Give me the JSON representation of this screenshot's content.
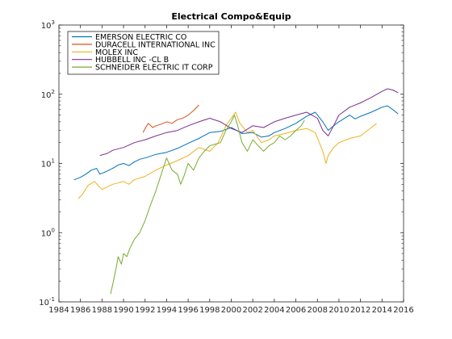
{
  "chart_data": {
    "type": "line",
    "title": "Electrical Compo&Equip",
    "xlabel": "",
    "ylabel": "",
    "y_scale": "log",
    "xlim": [
      1984,
      2016
    ],
    "ylim": [
      0.1,
      1000
    ],
    "x_ticks": [
      1984,
      1986,
      1988,
      1990,
      1992,
      1994,
      1996,
      1998,
      2000,
      2002,
      2004,
      2006,
      2008,
      2010,
      2012,
      2014,
      2016
    ],
    "x_tick_labels": [
      "1984",
      "1986",
      "1988",
      "1990",
      "1992",
      "1994",
      "1996",
      "1998",
      "2000",
      "2002",
      "2004",
      "2006",
      "2008",
      "2010",
      "2012",
      "2014",
      "2016"
    ],
    "y_ticks": [
      0.1,
      1,
      10,
      100,
      1000
    ],
    "y_tick_labels": [
      {
        "base": "10",
        "exp": "-1"
      },
      {
        "base": "10",
        "exp": "0"
      },
      {
        "base": "10",
        "exp": "1"
      },
      {
        "base": "10",
        "exp": "2"
      },
      {
        "base": "10",
        "exp": "3"
      }
    ],
    "grid": false,
    "legend_position": "top-left",
    "series": [
      {
        "name": "EMERSON ELECTRIC CO",
        "color": "#0072bd",
        "x": [
          1985.4,
          1986.0,
          1986.5,
          1987.0,
          1987.5,
          1987.8,
          1988.0,
          1988.5,
          1989.0,
          1989.5,
          1990.0,
          1990.5,
          1991.0,
          1991.5,
          1992.0,
          1993.0,
          1994.0,
          1995.0,
          1996.0,
          1997.0,
          1998.0,
          1999.0,
          2000.0,
          2000.5,
          2001.0,
          2002.0,
          2002.8,
          2003.5,
          2004.0,
          2005.0,
          2006.0,
          2007.0,
          2007.8,
          2008.5,
          2009.0,
          2009.5,
          2010.0,
          2011.0,
          2011.5,
          2012.0,
          2013.0,
          2014.0,
          2014.5,
          2015.0,
          2015.5
        ],
        "y": [
          5.8,
          6.3,
          7.0,
          8.0,
          8.5,
          7.0,
          7.2,
          7.8,
          8.5,
          9.5,
          10.0,
          9.3,
          10.5,
          11.5,
          12.0,
          13.5,
          14.5,
          16.5,
          19.5,
          23.0,
          28.0,
          29.0,
          33.0,
          30.0,
          27.0,
          28.0,
          24.0,
          25.0,
          28.0,
          32.0,
          38.0,
          48.0,
          55.0,
          40.0,
          30.0,
          35.0,
          40.0,
          50.0,
          44.0,
          48.0,
          55.0,
          65.0,
          68.0,
          60.0,
          52.0
        ]
      },
      {
        "name": "DURACELL INTERNATIONAL INC",
        "color": "#d95319",
        "x": [
          1991.8,
          1992.0,
          1992.3,
          1992.7,
          1993.0,
          1993.5,
          1994.0,
          1994.5,
          1995.0,
          1995.5,
          1996.0,
          1996.5,
          1997.0
        ],
        "y": [
          28.0,
          32.0,
          38.0,
          33.0,
          35.0,
          37.0,
          40.0,
          38.0,
          43.0,
          45.0,
          50.0,
          58.0,
          70.0
        ]
      },
      {
        "name": "MOLEX INC",
        "color": "#edb120",
        "x": [
          1985.8,
          1986.2,
          1986.7,
          1987.3,
          1987.8,
          1988.0,
          1988.5,
          1989.0,
          1990.0,
          1990.5,
          1991.0,
          1992.0,
          1993.0,
          1994.0,
          1995.0,
          1996.0,
          1997.0,
          1998.0,
          1998.8,
          1999.5,
          2000.0,
          2000.4,
          2000.8,
          2001.5,
          2002.0,
          2002.8,
          2003.5,
          2004.0,
          2005.0,
          2006.0,
          2007.0,
          2007.8,
          2008.5,
          2008.8,
          2009.0,
          2009.5,
          2010.0,
          2011.0,
          2012.0,
          2013.0,
          2013.5
        ],
        "y": [
          3.1,
          3.6,
          4.8,
          5.5,
          4.5,
          4.2,
          4.6,
          5.0,
          5.5,
          5.0,
          5.8,
          6.5,
          8.0,
          9.5,
          11.0,
          13.0,
          17.0,
          15.0,
          20.0,
          35.0,
          45.0,
          55.0,
          38.0,
          28.0,
          30.0,
          20.0,
          22.0,
          25.0,
          27.0,
          30.0,
          32.0,
          28.0,
          15.0,
          10.0,
          13.0,
          17.0,
          20.0,
          23.0,
          25.0,
          33.0,
          38.0
        ]
      },
      {
        "name": "HUBBELL INC -CL B",
        "color": "#7e2f8e",
        "x": [
          1987.8,
          1988.5,
          1989.0,
          1990.0,
          1991.0,
          1992.0,
          1993.0,
          1994.0,
          1995.0,
          1996.0,
          1997.0,
          1998.0,
          1999.0,
          2000.0,
          2001.0,
          2002.0,
          2003.0,
          2004.0,
          2005.0,
          2006.0,
          2007.0,
          2008.0,
          2008.5,
          2009.0,
          2009.5,
          2010.0,
          2011.0,
          2012.0,
          2013.0,
          2014.0,
          2014.5,
          2015.0,
          2015.5
        ],
        "y": [
          13.0,
          14.0,
          15.5,
          17.0,
          20.0,
          22.0,
          25.0,
          28.0,
          30.0,
          35.0,
          40.0,
          45.0,
          40.0,
          32.0,
          28.0,
          35.0,
          33.0,
          40.0,
          45.0,
          50.0,
          55.0,
          45.0,
          30.0,
          25.0,
          35.0,
          50.0,
          65.0,
          75.0,
          90.0,
          110.0,
          120.0,
          115.0,
          105.0
        ]
      },
      {
        "name": "SCHNEIDER ELECTRIC IT CORP",
        "color": "#77ac30",
        "x": [
          1988.8,
          1989.0,
          1989.3,
          1989.5,
          1989.8,
          1990.0,
          1990.3,
          1990.6,
          1991.0,
          1991.5,
          1992.0,
          1992.5,
          1993.0,
          1993.5,
          1994.0,
          1994.5,
          1995.0,
          1995.3,
          1995.6,
          1996.0,
          1996.5,
          1997.0,
          1997.5,
          1998.0,
          1999.0,
          1999.5,
          2000.0,
          2000.3,
          2000.6,
          2001.0,
          2001.5,
          2002.0,
          2002.5,
          2003.0,
          2003.5,
          2004.0,
          2004.5,
          2005.0,
          2005.5,
          2006.0,
          2006.5,
          2006.8
        ],
        "y": [
          0.13,
          0.18,
          0.3,
          0.45,
          0.35,
          0.5,
          0.45,
          0.6,
          0.8,
          1.0,
          1.5,
          2.5,
          4.0,
          7.0,
          12.0,
          8.0,
          7.0,
          5.0,
          6.5,
          10.0,
          8.0,
          12.0,
          15.0,
          18.0,
          20.0,
          30.0,
          40.0,
          50.0,
          35.0,
          20.0,
          15.0,
          22.0,
          18.0,
          15.0,
          18.0,
          20.0,
          25.0,
          22.0,
          25.0,
          30.0,
          35.0,
          42.0
        ]
      }
    ]
  }
}
